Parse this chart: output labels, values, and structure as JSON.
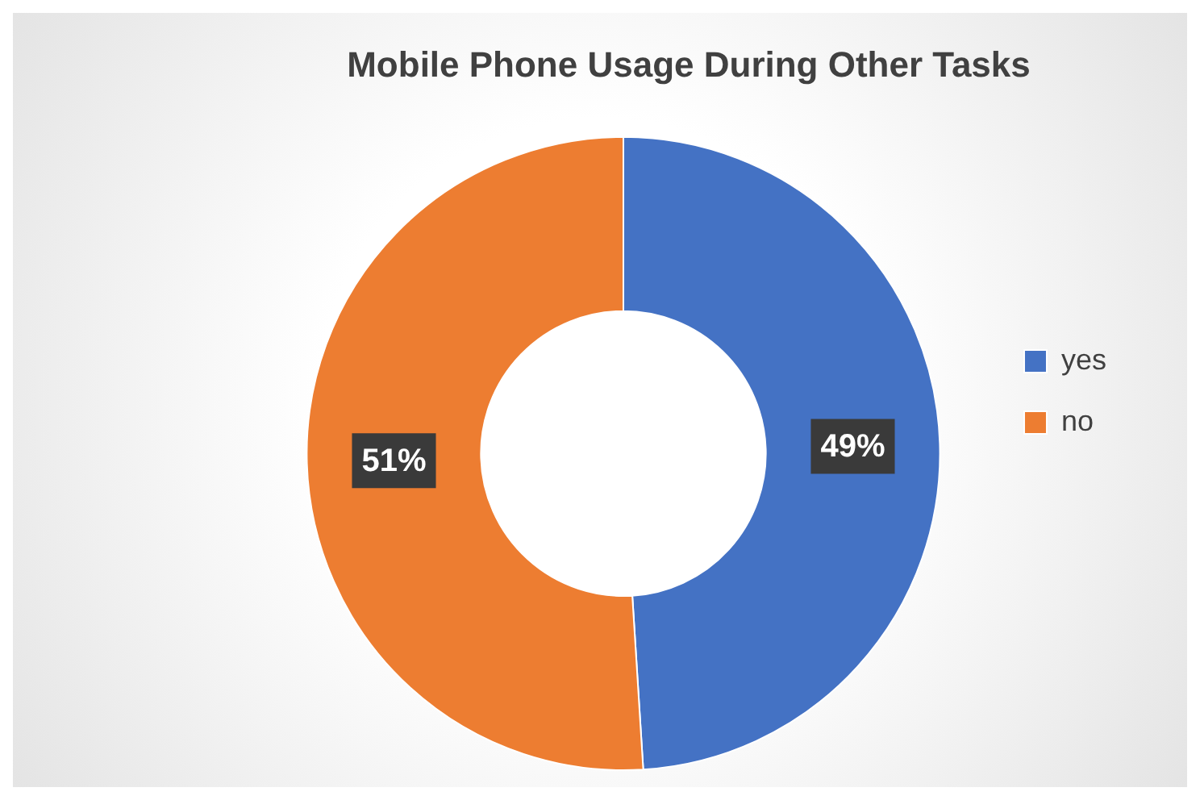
{
  "chart_data": {
    "type": "donut",
    "title": "Mobile Phone Usage During Other Tasks",
    "categories": [
      "yes",
      "no"
    ],
    "values": [
      49,
      51
    ],
    "colors": [
      "#4472c4",
      "#ed7d31"
    ],
    "value_labels": [
      "49%",
      "51%"
    ],
    "legend": "right"
  }
}
